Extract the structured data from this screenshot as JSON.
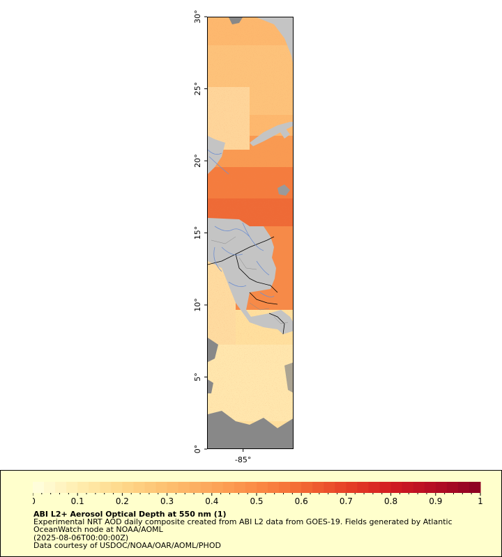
{
  "map": {
    "lat_labels": [
      "0°",
      "5°",
      "10°",
      "15°",
      "20°",
      "25°",
      "30°"
    ],
    "lat_values": [
      0,
      5,
      10,
      15,
      20,
      25,
      30
    ],
    "lon_labels": [
      "-85°"
    ],
    "lon_values": [
      -85
    ],
    "land_color": "#c4c4c4",
    "nodata_color": "#888888",
    "border_color": "#000000",
    "river_color": "#6f8fd0",
    "coast_color": "#7799cc"
  },
  "legend": {
    "tick_labels": [
      "0",
      "0.1",
      "0.2",
      "0.3",
      "0.4",
      "0.5",
      "0.6",
      "0.7",
      "0.8",
      "0.9",
      "1"
    ],
    "tick_values": [
      0,
      0.1,
      0.2,
      0.3,
      0.4,
      0.5,
      0.6,
      0.7,
      0.8,
      0.9,
      1
    ],
    "min": 0,
    "max": 1,
    "color_stops": [
      "#ffffe0",
      "#ffeeb0",
      "#fed88a",
      "#fdc070",
      "#fca65a",
      "#fb8a45",
      "#f36a34",
      "#e64027",
      "#d21c21",
      "#b30c24",
      "#8a0022"
    ]
  },
  "caption": {
    "title": "ABI L2+ Aerosol Optical Depth at 550 nm (1)",
    "description": "Experimental NRT AOD daily composite created from ABI L2 data from GOES-19. Fields generated by Atlantic OceanWatch node at NOAA/AOML",
    "date": "(2025-08-06T00:00:00Z)",
    "credit": "Data courtesy of USDOC/NOAA/OAR/AOML/PHOD"
  }
}
